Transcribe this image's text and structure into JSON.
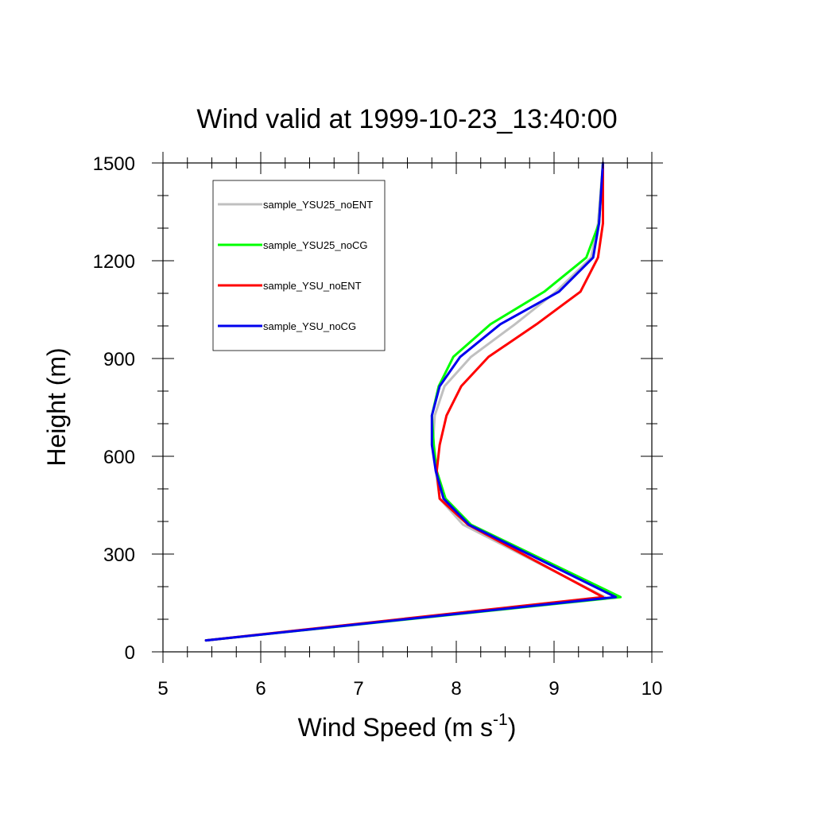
{
  "chart_data": {
    "type": "line",
    "title": "Wind valid at 1999-10-23_13:40:00",
    "xlabel": "Wind Speed (m s",
    "xlabel_sup": "-1",
    "xlabel_end": ")",
    "ylabel": "Height (m)",
    "xlim": [
      5,
      10
    ],
    "ylim": [
      0,
      1500
    ],
    "x_ticks": [
      5,
      6,
      7,
      8,
      9,
      10
    ],
    "x_tick_labels": [
      "5",
      "6",
      "7",
      "8",
      "9",
      "10"
    ],
    "y_ticks": [
      0,
      300,
      600,
      900,
      1200,
      1500
    ],
    "y_tick_labels": [
      "0",
      "300",
      "600",
      "900",
      "1200",
      "1500"
    ],
    "legend_position": "top-left",
    "series": [
      {
        "name": "sample_YSU25_noENT",
        "color": "#c0c0c0",
        "points": [
          [
            5.44,
            35
          ],
          [
            9.52,
            168
          ],
          [
            8.07,
            390
          ],
          [
            7.83,
            470
          ],
          [
            7.79,
            555
          ],
          [
            7.76,
            635
          ],
          [
            7.78,
            725
          ],
          [
            7.88,
            815
          ],
          [
            8.15,
            905
          ],
          [
            8.6,
            1005
          ],
          [
            9.02,
            1105
          ],
          [
            9.38,
            1210
          ],
          [
            9.45,
            1315
          ],
          [
            9.5,
            1500
          ]
        ]
      },
      {
        "name": "sample_YSU25_noCG",
        "color": "#00ff00",
        "points": [
          [
            5.44,
            35
          ],
          [
            9.68,
            168
          ],
          [
            8.15,
            390
          ],
          [
            7.89,
            470
          ],
          [
            7.8,
            555
          ],
          [
            7.77,
            635
          ],
          [
            7.75,
            725
          ],
          [
            7.82,
            815
          ],
          [
            7.97,
            905
          ],
          [
            8.35,
            1005
          ],
          [
            8.9,
            1105
          ],
          [
            9.33,
            1210
          ],
          [
            9.46,
            1315
          ],
          [
            9.5,
            1500
          ]
        ]
      },
      {
        "name": "sample_YSU_noENT",
        "color": "#ff0000",
        "points": [
          [
            5.44,
            35
          ],
          [
            9.5,
            168
          ],
          [
            8.12,
            390
          ],
          [
            7.83,
            470
          ],
          [
            7.8,
            555
          ],
          [
            7.83,
            635
          ],
          [
            7.9,
            725
          ],
          [
            8.05,
            815
          ],
          [
            8.33,
            905
          ],
          [
            8.82,
            1005
          ],
          [
            9.27,
            1105
          ],
          [
            9.45,
            1210
          ],
          [
            9.5,
            1315
          ],
          [
            9.5,
            1500
          ]
        ]
      },
      {
        "name": "sample_YSU_noCG",
        "color": "#0000ee",
        "points": [
          [
            5.44,
            35
          ],
          [
            9.63,
            168
          ],
          [
            8.13,
            390
          ],
          [
            7.87,
            470
          ],
          [
            7.79,
            555
          ],
          [
            7.75,
            635
          ],
          [
            7.75,
            725
          ],
          [
            7.83,
            815
          ],
          [
            8.04,
            905
          ],
          [
            8.45,
            1005
          ],
          [
            9.05,
            1105
          ],
          [
            9.4,
            1210
          ],
          [
            9.46,
            1315
          ],
          [
            9.5,
            1500
          ]
        ]
      }
    ]
  }
}
